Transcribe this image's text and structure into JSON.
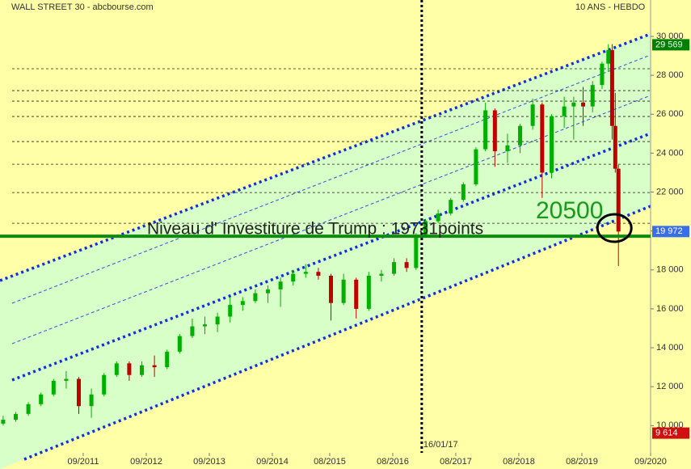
{
  "chart_data": {
    "type": "candlestick",
    "title": "WALL STREET 30 - abcbourse.com",
    "subtitle": "10 ANS - HEBDO",
    "x": [
      2010.4,
      2010.6,
      2010.8,
      2011.0,
      2011.2,
      2011.4,
      2011.6,
      2011.8,
      2012.0,
      2012.2,
      2012.4,
      2012.6,
      2012.8,
      2013.0,
      2013.2,
      2013.4,
      2013.6,
      2013.8,
      2014.0,
      2014.2,
      2014.4,
      2014.6,
      2014.8,
      2015.0,
      2015.2,
      2015.4,
      2015.6,
      2015.8,
      2016.0,
      2016.2,
      2016.4,
      2016.6,
      2016.8,
      2016.95,
      2017.1,
      2017.3,
      2017.5,
      2017.7,
      2017.9,
      2018.05,
      2018.2,
      2018.4,
      2018.6,
      2018.8,
      2018.95,
      2019.1,
      2019.3,
      2019.45,
      2019.6,
      2019.75,
      2019.9,
      2020.0,
      2020.06,
      2020.11,
      2020.16
    ],
    "open": [
      10100,
      10300,
      10600,
      11100,
      11600,
      12300,
      12400,
      11000,
      11600,
      12600,
      13200,
      12600,
      13100,
      13000,
      13800,
      14600,
      15100,
      15200,
      15600,
      16200,
      16400,
      16800,
      17000,
      17400,
      17800,
      17900,
      17700,
      16300,
      17500,
      16000,
      17700,
      17800,
      18400,
      18100,
      19800,
      20500,
      20900,
      21600,
      22400,
      24200,
      26200,
      24100,
      24400,
      25400,
      26500,
      23000,
      25900,
      26400,
      26600,
      26400,
      27500,
      28600,
      29300,
      25400,
      23200
    ],
    "high": [
      10500,
      10700,
      11200,
      11700,
      12400,
      12800,
      12500,
      11900,
      12700,
      13300,
      13300,
      13300,
      13600,
      13900,
      14700,
      15500,
      15600,
      15800,
      16600,
      16600,
      17000,
      17200,
      17600,
      18000,
      18300,
      18100,
      17800,
      17800,
      17600,
      17900,
      18000,
      18600,
      18600,
      19900,
      20600,
      21100,
      21700,
      22500,
      24300,
      26600,
      26300,
      25000,
      25500,
      26800,
      26600,
      26000,
      26900,
      26900,
      27400,
      27700,
      28700,
      29600,
      29600,
      27100,
      23400
    ],
    "low": [
      10000,
      10200,
      10500,
      11000,
      11500,
      11900,
      10600,
      10400,
      11500,
      12500,
      12300,
      12500,
      12500,
      12900,
      13700,
      14500,
      14700,
      14800,
      15300,
      15900,
      16300,
      16300,
      16100,
      17200,
      17600,
      17500,
      15400,
      16200,
      15500,
      15900,
      17400,
      17700,
      17900,
      18000,
      19700,
      20400,
      20800,
      21500,
      22300,
      24100,
      23300,
      23500,
      24000,
      25200,
      21700,
      22700,
      25300,
      24700,
      25400,
      26100,
      27300,
      28200,
      24700,
      23000,
      18200
    ],
    "close": [
      10300,
      10600,
      11100,
      11600,
      12300,
      12400,
      11000,
      11600,
      12600,
      13200,
      12600,
      13100,
      13000,
      13800,
      14600,
      15100,
      15200,
      15600,
      16200,
      16400,
      16800,
      17000,
      17400,
      17800,
      17900,
      17700,
      16300,
      17500,
      16000,
      17700,
      17800,
      18400,
      18100,
      19800,
      20500,
      20900,
      21600,
      22400,
      24200,
      26200,
      24100,
      24400,
      25400,
      26500,
      23000,
      25900,
      26400,
      26600,
      26400,
      27500,
      28600,
      29300,
      25400,
      23200,
      19972
    ],
    "up_color": "#00b000",
    "down_color": "#c00000",
    "xlim": [
      2010.35,
      2020.67
    ],
    "xticks": [
      {
        "value": 2011.67,
        "label": "09/2011"
      },
      {
        "value": 2012.67,
        "label": "09/2012"
      },
      {
        "value": 2013.67,
        "label": "09/2013"
      },
      {
        "value": 2014.67,
        "label": "09/2014"
      },
      {
        "value": 2015.58,
        "label": "08/2015"
      },
      {
        "value": 2016.58,
        "label": "08/2016"
      },
      {
        "value": 2017.58,
        "label": "08/2017"
      },
      {
        "value": 2018.58,
        "label": "08/2018"
      },
      {
        "value": 2019.58,
        "label": "08/2019"
      },
      {
        "value": 2020.67,
        "label": "09/2020"
      }
    ],
    "ylim": [
      8600,
      31870
    ],
    "yticks": [
      {
        "value": 10000,
        "label": "10 000"
      },
      {
        "value": 12000,
        "label": "12 000"
      },
      {
        "value": 14000,
        "label": "14 000"
      },
      {
        "value": 16000,
        "label": "16 000"
      },
      {
        "value": 18000,
        "label": "18 000"
      },
      {
        "value": 20000,
        "label": "20 000"
      },
      {
        "value": 22000,
        "label": "22 000"
      },
      {
        "value": 24000,
        "label": "24 000"
      },
      {
        "value": 26000,
        "label": "26 000"
      },
      {
        "value": 28000,
        "label": "28 000"
      },
      {
        "value": 30000,
        "label": "30 000"
      }
    ],
    "reference_lines": [
      28337,
      27214,
      26674,
      25884,
      24595,
      23430,
      21975,
      20395
    ],
    "price_markers": [
      {
        "value": 29569,
        "label": "29 569",
        "color": "#008000"
      },
      {
        "value": 19972,
        "label": "19 972",
        "color": "#3a6ee8"
      },
      {
        "value": 9614,
        "label": "9 614",
        "color": "#d01010"
      }
    ],
    "level": {
      "value": 19731,
      "label": "Niveau d' Investiture de Trump : 19731points",
      "color": "#108a10"
    },
    "event_line": {
      "x": 2017.04,
      "label": "16/01/17"
    },
    "annotation": "20500"
  }
}
